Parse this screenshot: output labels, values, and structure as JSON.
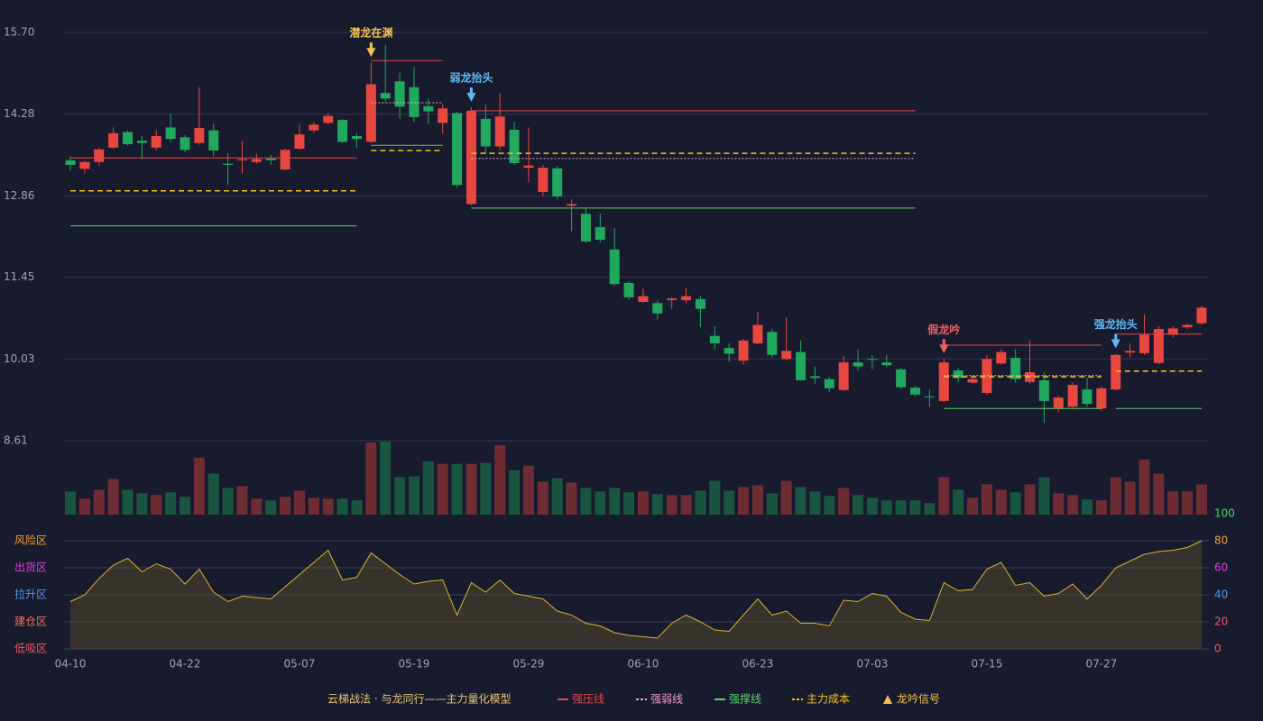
{
  "chart_data": [
    {
      "type": "candlestick",
      "categories": [
        "04-10",
        null,
        null,
        null,
        null,
        null,
        null,
        null,
        "04-22",
        null,
        null,
        null,
        null,
        null,
        null,
        null,
        "05-07",
        null,
        null,
        null,
        null,
        null,
        null,
        null,
        "05-19",
        null,
        null,
        null,
        null,
        null,
        null,
        null,
        "05-29",
        null,
        null,
        null,
        null,
        null,
        null,
        null,
        "06-10",
        null,
        null,
        null,
        null,
        null,
        null,
        null,
        "06-23",
        null,
        null,
        null,
        null,
        null,
        null,
        null,
        "07-03",
        null,
        null,
        null,
        null,
        null,
        null,
        null,
        "07-15",
        null,
        null,
        null,
        null,
        null,
        null,
        null,
        "07-27",
        null,
        null,
        null,
        null,
        null,
        null,
        null
      ],
      "open": [
        13.48,
        13.33,
        13.45,
        13.7,
        13.97,
        13.82,
        13.7,
        14.05,
        13.88,
        13.78,
        14.0,
        13.42,
        13.48,
        13.45,
        13.51,
        13.32,
        13.68,
        14.0,
        14.13,
        14.18,
        13.9,
        13.8,
        14.65,
        14.85,
        14.75,
        14.42,
        14.13,
        14.3,
        12.72,
        14.2,
        13.72,
        14.01,
        13.35,
        12.93,
        13.34,
        12.69,
        12.55,
        12.32,
        11.93,
        11.35,
        11.02,
        11.0,
        11.05,
        11.05,
        11.07,
        10.43,
        10.22,
        10.0,
        10.3,
        10.5,
        10.03,
        10.15,
        9.73,
        9.68,
        9.49,
        9.97,
        10.03,
        9.97,
        9.85,
        9.53,
        9.38,
        9.3,
        9.83,
        9.62,
        9.44,
        9.95,
        10.05,
        9.63,
        9.66,
        9.18,
        9.2,
        9.5,
        9.17,
        9.5,
        10.14,
        10.13,
        9.96,
        10.45,
        10.58,
        10.65
      ],
      "close": [
        13.4,
        13.45,
        13.67,
        13.95,
        13.76,
        13.78,
        13.9,
        13.85,
        13.66,
        14.04,
        13.65,
        13.4,
        13.5,
        13.5,
        13.48,
        13.66,
        13.93,
        14.1,
        14.25,
        13.8,
        13.85,
        14.8,
        14.55,
        14.41,
        14.23,
        14.33,
        14.38,
        13.05,
        14.34,
        13.72,
        14.24,
        13.43,
        13.39,
        13.35,
        12.85,
        12.72,
        12.07,
        12.1,
        11.33,
        11.1,
        11.12,
        10.82,
        11.08,
        11.12,
        10.9,
        10.3,
        10.12,
        10.35,
        10.62,
        10.1,
        10.17,
        9.66,
        9.7,
        9.52,
        9.97,
        9.9,
        10.02,
        9.92,
        9.54,
        9.41,
        9.37,
        9.97,
        9.7,
        9.68,
        10.03,
        10.15,
        9.68,
        9.8,
        9.3,
        9.36,
        9.58,
        9.25,
        9.52,
        10.1,
        10.17,
        10.45,
        10.55,
        10.56,
        10.62,
        10.92
      ],
      "high": [
        13.55,
        13.47,
        13.7,
        14.05,
        14.0,
        13.9,
        14.0,
        14.28,
        13.92,
        14.75,
        14.12,
        13.6,
        13.82,
        13.6,
        13.58,
        13.68,
        14.1,
        14.15,
        14.3,
        14.2,
        13.95,
        15.18,
        15.48,
        15.0,
        15.1,
        14.55,
        14.45,
        14.32,
        14.4,
        14.45,
        14.65,
        14.15,
        14.05,
        13.4,
        13.38,
        12.8,
        12.65,
        12.55,
        12.3,
        11.38,
        11.25,
        11.05,
        11.1,
        11.27,
        11.12,
        10.6,
        10.3,
        10.38,
        10.85,
        10.55,
        10.75,
        10.35,
        9.9,
        9.72,
        10.08,
        10.2,
        10.1,
        10.1,
        9.88,
        9.56,
        9.5,
        10.03,
        9.88,
        9.72,
        10.1,
        10.2,
        10.2,
        10.35,
        9.8,
        9.4,
        9.62,
        9.7,
        9.55,
        10.12,
        10.3,
        10.8,
        10.6,
        10.6,
        10.65,
        10.95
      ],
      "low": [
        13.3,
        13.25,
        13.38,
        13.68,
        13.74,
        13.5,
        13.65,
        13.8,
        13.62,
        13.75,
        13.55,
        13.05,
        13.25,
        13.42,
        13.4,
        13.3,
        13.66,
        13.95,
        14.1,
        13.78,
        13.7,
        13.78,
        14.5,
        14.2,
        14.15,
        14.1,
        13.95,
        13.0,
        12.7,
        13.6,
        13.65,
        13.4,
        13.1,
        12.85,
        12.8,
        12.25,
        12.05,
        12.05,
        11.3,
        11.05,
        11.0,
        10.7,
        10.9,
        11.0,
        10.58,
        10.2,
        9.98,
        9.93,
        10.28,
        10.05,
        10.0,
        9.65,
        9.6,
        9.45,
        9.47,
        9.82,
        9.85,
        9.88,
        9.5,
        9.38,
        9.2,
        9.28,
        9.62,
        9.6,
        9.4,
        9.93,
        9.62,
        9.6,
        8.92,
        9.1,
        9.18,
        9.2,
        9.12,
        9.48,
        10.05,
        10.1,
        9.94,
        10.4,
        10.55,
        10.62
      ],
      "up_color": "#e8473f",
      "down_color": "#1fa85e",
      "ylim": [
        8.61,
        15.7
      ],
      "yticks": [
        {
          "value": 15.7,
          "label": "15.70"
        },
        14.28,
        12.86,
        11.45,
        10.03,
        8.61
      ],
      "grid": true,
      "levels": [
        {
          "name": "强压线",
          "color": "#e8474a",
          "style": "solid",
          "values": [
            13.52,
            13.52,
            13.52,
            13.52,
            13.52,
            13.52,
            13.52,
            13.52,
            13.52,
            13.52,
            13.52,
            13.52,
            13.52,
            13.52,
            13.52,
            13.52,
            13.52,
            13.52,
            13.52,
            13.52,
            13.52,
            15.21,
            15.21,
            15.21,
            15.21,
            15.21,
            15.21,
            null,
            14.34,
            14.34,
            14.34,
            14.34,
            14.34,
            14.34,
            14.34,
            14.34,
            14.34,
            14.34,
            14.34,
            14.34,
            14.34,
            14.34,
            14.34,
            14.34,
            14.34,
            14.34,
            14.34,
            14.34,
            14.34,
            14.34,
            14.34,
            14.34,
            14.34,
            14.34,
            14.34,
            14.34,
            14.34,
            14.34,
            14.34,
            14.34,
            null,
            10.27,
            10.27,
            10.27,
            10.27,
            10.27,
            10.27,
            10.27,
            10.27,
            10.27,
            10.27,
            10.27,
            10.27,
            10.46,
            10.46,
            10.46,
            10.46,
            10.46,
            10.46,
            10.46
          ]
        },
        {
          "name": "强弱线",
          "color": "#f2a0c8",
          "style": "dotted",
          "values": [
            null,
            null,
            null,
            null,
            null,
            null,
            null,
            null,
            null,
            null,
            null,
            null,
            null,
            null,
            null,
            null,
            null,
            null,
            null,
            null,
            null,
            14.48,
            14.48,
            14.48,
            14.48,
            14.48,
            14.48,
            null,
            13.51,
            13.51,
            13.51,
            13.51,
            13.51,
            13.51,
            13.51,
            13.51,
            13.51,
            13.51,
            13.51,
            13.51,
            13.51,
            13.51,
            13.51,
            13.51,
            13.51,
            13.51,
            13.51,
            13.51,
            13.51,
            13.51,
            13.51,
            13.51,
            13.51,
            13.51,
            13.51,
            13.51,
            13.51,
            13.51,
            13.51,
            13.51,
            null,
            9.74,
            9.74,
            9.74,
            9.74,
            9.74,
            9.74,
            9.74,
            9.74,
            9.74,
            9.74,
            9.74,
            9.74,
            null,
            null,
            null,
            null,
            null,
            null,
            null
          ]
        },
        {
          "name": "强撑线",
          "color": "#5fcf6a",
          "style": "solid",
          "values": [
            12.34,
            12.34,
            12.34,
            12.34,
            12.34,
            12.34,
            12.34,
            12.34,
            12.34,
            12.34,
            12.34,
            12.34,
            12.34,
            12.34,
            12.34,
            12.34,
            12.34,
            12.34,
            12.34,
            12.34,
            12.34,
            13.74,
            13.74,
            13.74,
            13.74,
            13.74,
            13.74,
            null,
            12.65,
            12.65,
            12.65,
            12.65,
            12.65,
            12.65,
            12.65,
            12.65,
            12.65,
            12.65,
            12.65,
            12.65,
            12.65,
            12.65,
            12.65,
            12.65,
            12.65,
            12.65,
            12.65,
            12.65,
            12.65,
            12.65,
            12.65,
            12.65,
            12.65,
            12.65,
            12.65,
            12.65,
            12.65,
            12.65,
            12.65,
            12.65,
            null,
            9.17,
            9.17,
            9.17,
            9.17,
            9.17,
            9.17,
            9.17,
            9.17,
            9.17,
            9.17,
            9.17,
            9.17,
            9.17,
            9.17,
            9.17,
            9.17,
            9.17,
            9.17,
            9.17
          ]
        },
        {
          "name": "主力成本",
          "color": "#f5c518",
          "style": "dashed",
          "values": [
            12.95,
            12.95,
            12.95,
            12.95,
            12.95,
            12.95,
            12.95,
            12.95,
            12.95,
            12.95,
            12.95,
            12.95,
            12.95,
            12.95,
            12.95,
            12.95,
            12.95,
            12.95,
            12.95,
            12.95,
            12.95,
            13.65,
            13.65,
            13.65,
            13.65,
            13.65,
            13.65,
            null,
            13.6,
            13.6,
            13.6,
            13.6,
            13.6,
            13.6,
            13.6,
            13.6,
            13.6,
            13.6,
            13.6,
            13.6,
            13.6,
            13.6,
            13.6,
            13.6,
            13.6,
            13.6,
            13.6,
            13.6,
            13.6,
            13.6,
            13.6,
            13.6,
            13.6,
            13.6,
            13.6,
            13.6,
            13.6,
            13.6,
            13.6,
            13.6,
            null,
            9.72,
            9.72,
            9.72,
            9.72,
            9.72,
            9.72,
            9.72,
            9.72,
            9.72,
            9.72,
            9.72,
            9.72,
            9.82,
            9.82,
            9.82,
            9.82,
            9.82,
            9.82,
            9.82
          ]
        }
      ],
      "signal_name": "龙吟信号",
      "signal_color": "#f2c14e",
      "signals": [
        {
          "index": 21,
          "label": "潜龙在渊",
          "color": "#f2c14e"
        },
        {
          "index": 28,
          "label": "弱龙抬头",
          "color": "#5fb8f5"
        },
        {
          "index": 61,
          "label": "假龙吟",
          "color": "#f06060"
        },
        {
          "index": 73,
          "label": "强龙抬头",
          "color": "#5fb8f5"
        }
      ],
      "legend_title": "云梯战法 · 与龙同行——主力量化模型"
    },
    {
      "type": "bar",
      "values": [
        26,
        18,
        28,
        40,
        28,
        24,
        22,
        25,
        20,
        64,
        46,
        30,
        32,
        18,
        16,
        20,
        27,
        19,
        18,
        18,
        16,
        81,
        82,
        42,
        43,
        60,
        57,
        57,
        57,
        58,
        78,
        50,
        55,
        37,
        41,
        36,
        30,
        26,
        30,
        25,
        26,
        23,
        22,
        22,
        27,
        38,
        27,
        31,
        33,
        24,
        38,
        31,
        26,
        21,
        30,
        22,
        19,
        16,
        16,
        16,
        13,
        42,
        28,
        19,
        34,
        28,
        25,
        34,
        42,
        24,
        22,
        17,
        16,
        42,
        37,
        62,
        46,
        26,
        26,
        34
      ]
    },
    {
      "type": "area",
      "values": [
        35,
        40,
        52,
        62,
        67,
        57,
        63,
        59,
        48,
        59,
        42,
        35,
        39,
        38,
        37,
        46,
        55,
        64,
        73,
        51,
        53,
        71,
        63,
        55,
        48,
        50,
        51,
        25,
        49,
        42,
        51,
        41,
        39,
        37,
        28,
        25,
        19,
        17,
        12,
        10,
        9,
        8,
        19,
        25,
        20,
        14,
        13,
        25,
        37,
        25,
        28,
        19,
        19,
        17,
        36,
        35,
        41,
        39,
        27,
        22,
        21,
        49,
        43,
        44,
        59,
        64,
        47,
        49,
        39,
        41,
        48,
        37,
        47,
        60,
        65,
        70,
        72,
        73,
        75,
        80
      ],
      "color": "#d9b62a",
      "ylim": [
        0,
        100
      ],
      "yticks": [
        0,
        20,
        40,
        60,
        80,
        100
      ],
      "ytick_colors": [
        "#f05a6a",
        "#f05a6a",
        "#4f9cf0",
        "#e040e0",
        "#f0a030",
        "#3fe060"
      ],
      "zones": [
        {
          "value": 0,
          "label": "低吸区"
        },
        {
          "value": 20,
          "label": "建仓区"
        },
        {
          "value": 40,
          "label": "拉升区"
        },
        {
          "value": 60,
          "label": "出货区"
        },
        {
          "value": 80,
          "label": "风险区"
        }
      ],
      "zone_colors": [
        "#f05a6a",
        "#f07060",
        "#4f9cf0",
        "#e040e0",
        "#f0a030"
      ]
    }
  ]
}
